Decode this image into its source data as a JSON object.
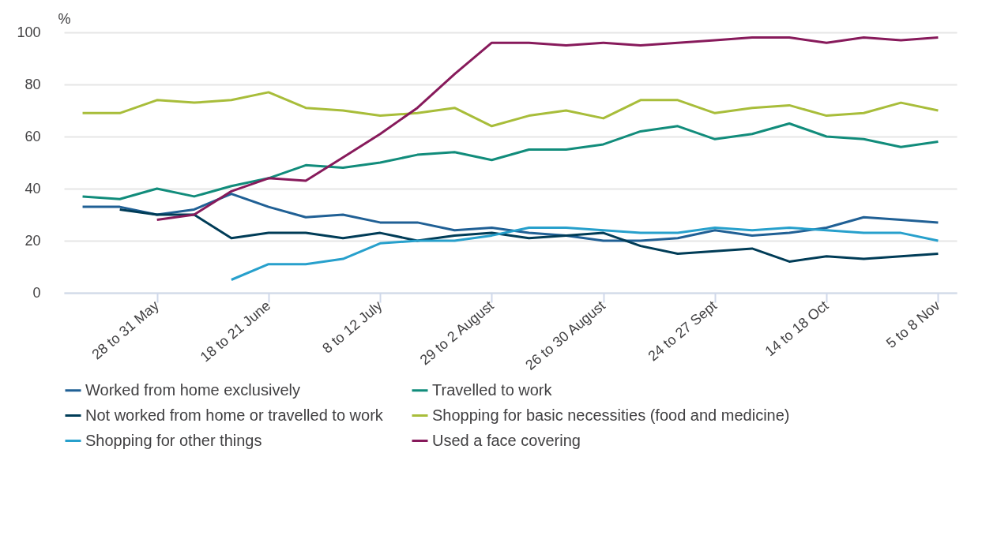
{
  "chart_data": {
    "type": "line",
    "ylabel": "%",
    "categories": [
      null,
      null,
      "28 to 31 May",
      null,
      null,
      "18 to 21 June",
      null,
      null,
      "8 to 12 July",
      null,
      null,
      "29 to 2 August",
      null,
      null,
      "26 to 30 August",
      null,
      null,
      "24 to 27 Sept",
      null,
      null,
      "14 to 18 Oct",
      null,
      null,
      "5 to 8 Nov"
    ],
    "series": [
      {
        "name": "Worked from home exclusively",
        "color": "#206095",
        "values": [
          33,
          33,
          30,
          32,
          38,
          33,
          29,
          30,
          27,
          27,
          24,
          25,
          23,
          22,
          20,
          20,
          21,
          24,
          22,
          23,
          25,
          29,
          28,
          27
        ]
      },
      {
        "name": "Travelled to work",
        "color": "#118c7b",
        "values": [
          37,
          36,
          40,
          37,
          41,
          44,
          49,
          48,
          50,
          53,
          54,
          51,
          55,
          55,
          57,
          62,
          64,
          59,
          61,
          65,
          60,
          59,
          56,
          58
        ]
      },
      {
        "name": "Not worked from home or travelled to work",
        "color": "#003c57",
        "values": [
          null,
          32,
          30,
          30,
          21,
          23,
          23,
          21,
          23,
          20,
          22,
          23,
          21,
          22,
          23,
          18,
          15,
          16,
          17,
          12,
          14,
          13,
          14,
          15
        ]
      },
      {
        "name": "Shopping for basic necessities (food and medicine)",
        "color": "#a8bd3a",
        "values": [
          69,
          69,
          74,
          73,
          74,
          77,
          71,
          70,
          68,
          69,
          71,
          64,
          68,
          70,
          67,
          74,
          74,
          69,
          71,
          72,
          68,
          69,
          73,
          70
        ]
      },
      {
        "name": "Shopping for other things",
        "color": "#27a0cc",
        "values": [
          null,
          null,
          null,
          null,
          5,
          11,
          11,
          13,
          19,
          20,
          20,
          22,
          25,
          25,
          24,
          23,
          23,
          25,
          24,
          25,
          24,
          23,
          23,
          20
        ]
      },
      {
        "name": "Used a face covering",
        "color": "#871a5b",
        "values": [
          null,
          null,
          28,
          30,
          39,
          44,
          43,
          52,
          61,
          71,
          84,
          96,
          96,
          95,
          96,
          95,
          96,
          97,
          98,
          98,
          96,
          98,
          97,
          98
        ]
      }
    ],
    "ylim": [
      0,
      100
    ],
    "yticks": [
      0,
      20,
      40,
      60,
      80,
      100
    ],
    "grid": "y",
    "legend": "bottom",
    "marker": "none",
    "line_style": "solid"
  }
}
